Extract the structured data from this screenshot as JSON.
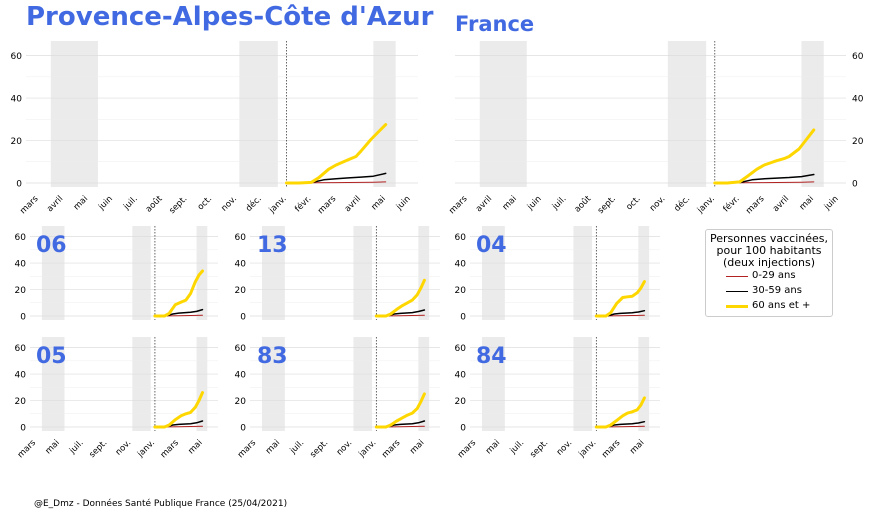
{
  "titles": {
    "region": "Provence-Alpes-Côte d'Azur",
    "france": "France"
  },
  "legend": {
    "title_lines": [
      "Personnes vaccinées,",
      "pour 100 habitants",
      "(deux injections)"
    ],
    "entries": [
      {
        "label": "0-29 ans",
        "color": "#b22222"
      },
      {
        "label": "30-59 ans",
        "color": "#000000"
      },
      {
        "label": "60 ans et +",
        "color": "#ffd700"
      }
    ]
  },
  "footer": "@E_Dmz - Données Santé Publique France (25/04/2021)",
  "colors": {
    "accent": "#4169e1",
    "shade": "#ebebeb",
    "grid": "#dddddd"
  },
  "chart_data": [
    {
      "id": "region",
      "type": "line",
      "title": "Provence-Alpes-Côte d'Azur",
      "xlabels": [
        "mars",
        "avril",
        "mai",
        "juin",
        "juil.",
        "août",
        "sept.",
        "oct.",
        "nov.",
        "déc.",
        "janv.",
        "févr.",
        "mars",
        "avril",
        "mai",
        "juin"
      ],
      "yticks": [
        0,
        20,
        40,
        60
      ],
      "ylim": [
        0,
        65
      ],
      "yaxis_side": "left",
      "series": [
        {
          "name": "0-29 ans",
          "x": [
            10.0,
            11.0,
            12.0,
            13.0,
            13.5,
            14.0
          ],
          "y": [
            0,
            0.1,
            0.2,
            0.3,
            0.4,
            0.5
          ]
        },
        {
          "name": "30-59 ans",
          "x": [
            10.0,
            11.0,
            11.5,
            12.0,
            12.5,
            13.0,
            13.5,
            14.0
          ],
          "y": [
            0,
            0.2,
            1.5,
            2.0,
            2.4,
            2.8,
            3.2,
            4.5
          ]
        },
        {
          "name": "60 ans et +",
          "x": [
            10.0,
            10.5,
            11.0,
            11.3,
            11.7,
            12.0,
            12.5,
            12.8,
            13.0,
            13.4,
            13.7,
            14.0
          ],
          "y": [
            0,
            0,
            0.3,
            2.5,
            6.5,
            8.5,
            11.0,
            12.5,
            15.0,
            20.5,
            24.0,
            27.5
          ]
        }
      ]
    },
    {
      "id": "france",
      "type": "line",
      "title": "France",
      "xlabels": [
        "mars",
        "avril",
        "mai",
        "juin",
        "juil.",
        "août",
        "sept.",
        "oct.",
        "nov.",
        "déc.",
        "janv.",
        "févr.",
        "mars",
        "avril",
        "mai",
        "juin"
      ],
      "yticks": [
        0,
        20,
        40,
        60
      ],
      "ylim": [
        0,
        65
      ],
      "yaxis_side": "right",
      "series": [
        {
          "name": "0-29 ans",
          "x": [
            10.0,
            11.0,
            12.0,
            13.0,
            13.5,
            14.0
          ],
          "y": [
            0,
            0.1,
            0.2,
            0.3,
            0.4,
            0.5
          ]
        },
        {
          "name": "30-59 ans",
          "x": [
            10.0,
            11.0,
            11.5,
            12.0,
            12.5,
            13.0,
            13.5,
            14.0
          ],
          "y": [
            0,
            0.2,
            1.5,
            2.0,
            2.3,
            2.6,
            3.0,
            4.0
          ]
        },
        {
          "name": "60 ans et +",
          "x": [
            10.0,
            10.5,
            11.0,
            11.3,
            11.7,
            12.0,
            12.5,
            12.8,
            13.0,
            13.4,
            13.7,
            14.0
          ],
          "y": [
            0,
            0,
            0.5,
            3.0,
            6.5,
            8.5,
            10.5,
            11.5,
            12.5,
            16.0,
            20.5,
            25.0
          ]
        }
      ]
    },
    {
      "id": "dep-06",
      "type": "line",
      "title": "06",
      "xlabels": [],
      "yticks": [
        0,
        20,
        40,
        60
      ],
      "ylim": [
        0,
        65
      ],
      "yaxis_side": "left",
      "series": [
        {
          "name": "0-29 ans",
          "x": [
            10.0,
            12.0,
            13.0,
            14.0
          ],
          "y": [
            0,
            0.2,
            0.4,
            0.6
          ]
        },
        {
          "name": "30-59 ans",
          "x": [
            10.0,
            11.0,
            11.5,
            12.0,
            13.0,
            13.5,
            14.0
          ],
          "y": [
            0,
            0.2,
            1.5,
            2.2,
            2.8,
            3.5,
            4.8
          ]
        },
        {
          "name": "60 ans et +",
          "x": [
            10.0,
            10.8,
            11.2,
            11.7,
            12.2,
            12.6,
            13.0,
            13.4,
            13.7,
            14.0
          ],
          "y": [
            0,
            0,
            2.0,
            8.5,
            10.5,
            12.0,
            17.0,
            26.0,
            31.0,
            34.0
          ]
        }
      ]
    },
    {
      "id": "dep-13",
      "type": "line",
      "title": "13",
      "xlabels": [],
      "yticks": [
        0,
        20,
        40,
        60
      ],
      "ylim": [
        0,
        65
      ],
      "yaxis_side": "left",
      "series": [
        {
          "name": "0-29 ans",
          "x": [
            10.0,
            12.0,
            13.0,
            14.0
          ],
          "y": [
            0,
            0.2,
            0.4,
            0.5
          ]
        },
        {
          "name": "30-59 ans",
          "x": [
            10.0,
            11.0,
            11.5,
            12.0,
            13.0,
            13.5,
            14.0
          ],
          "y": [
            0,
            0.2,
            1.5,
            2.0,
            2.6,
            3.4,
            4.5
          ]
        },
        {
          "name": "60 ans et +",
          "x": [
            10.0,
            10.8,
            11.2,
            11.7,
            12.2,
            12.6,
            13.0,
            13.4,
            13.7,
            14.0
          ],
          "y": [
            0,
            0,
            1.5,
            5.0,
            8.0,
            10.0,
            12.0,
            16.0,
            21.0,
            27.0
          ]
        }
      ]
    },
    {
      "id": "dep-04",
      "type": "line",
      "title": "04",
      "xlabels": [],
      "yticks": [
        0,
        20,
        40,
        60
      ],
      "ylim": [
        0,
        65
      ],
      "yaxis_side": "left",
      "series": [
        {
          "name": "0-29 ans",
          "x": [
            10.0,
            12.0,
            13.0,
            14.0
          ],
          "y": [
            0,
            0.2,
            0.4,
            0.5
          ]
        },
        {
          "name": "30-59 ans",
          "x": [
            10.0,
            11.0,
            11.5,
            12.0,
            13.0,
            13.5,
            14.0
          ],
          "y": [
            0,
            0.2,
            1.5,
            2.0,
            2.5,
            3.0,
            4.0
          ]
        },
        {
          "name": "60 ans et +",
          "x": [
            10.0,
            10.8,
            11.2,
            11.7,
            12.2,
            12.6,
            13.0,
            13.4,
            13.7,
            14.0
          ],
          "y": [
            0,
            0,
            2.5,
            9.5,
            14.0,
            14.5,
            15.0,
            17.5,
            21.0,
            26.0
          ]
        }
      ]
    },
    {
      "id": "dep-05",
      "type": "line",
      "title": "05",
      "xlabels": [
        "mars",
        "mai",
        "juil.",
        "sept.",
        "nov.",
        "janv.",
        "mars",
        "mai"
      ],
      "yticks": [
        0,
        20,
        40,
        60
      ],
      "ylim": [
        0,
        65
      ],
      "yaxis_side": "left",
      "series": [
        {
          "name": "0-29 ans",
          "x": [
            10.0,
            12.0,
            13.0,
            14.0
          ],
          "y": [
            0,
            0.2,
            0.4,
            0.5
          ]
        },
        {
          "name": "30-59 ans",
          "x": [
            10.0,
            11.0,
            11.5,
            12.0,
            13.0,
            13.5,
            14.0
          ],
          "y": [
            0,
            0.2,
            1.5,
            2.0,
            2.5,
            3.2,
            4.5
          ]
        },
        {
          "name": "60 ans et +",
          "x": [
            10.0,
            10.8,
            11.2,
            11.7,
            12.2,
            12.6,
            13.0,
            13.4,
            13.7,
            14.0
          ],
          "y": [
            0,
            0,
            1.5,
            5.5,
            8.5,
            10.0,
            11.0,
            15.0,
            20.0,
            26.0
          ]
        }
      ]
    },
    {
      "id": "dep-83",
      "type": "line",
      "title": "83",
      "xlabels": [
        "mars",
        "mai",
        "juil.",
        "sept.",
        "nov.",
        "janv.",
        "mars",
        "mai"
      ],
      "yticks": [
        0,
        20,
        40,
        60
      ],
      "ylim": [
        0,
        65
      ],
      "yaxis_side": "left",
      "series": [
        {
          "name": "0-29 ans",
          "x": [
            10.0,
            12.0,
            13.0,
            14.0
          ],
          "y": [
            0,
            0.2,
            0.4,
            0.5
          ]
        },
        {
          "name": "30-59 ans",
          "x": [
            10.0,
            11.0,
            11.5,
            12.0,
            13.0,
            13.5,
            14.0
          ],
          "y": [
            0,
            0.2,
            1.5,
            2.0,
            2.5,
            3.2,
            4.5
          ]
        },
        {
          "name": "60 ans et +",
          "x": [
            10.0,
            10.8,
            11.2,
            11.7,
            12.2,
            12.6,
            13.0,
            13.4,
            13.7,
            14.0
          ],
          "y": [
            0,
            0,
            1.5,
            4.5,
            7.0,
            9.0,
            10.5,
            14.0,
            19.0,
            25.0
          ]
        }
      ]
    },
    {
      "id": "dep-84",
      "type": "line",
      "title": "84",
      "xlabels": [
        "mars",
        "mai",
        "juil.",
        "sept.",
        "nov.",
        "janv.",
        "mars",
        "mai"
      ],
      "yticks": [
        0,
        20,
        40,
        60
      ],
      "ylim": [
        0,
        65
      ],
      "yaxis_side": "left",
      "series": [
        {
          "name": "0-29 ans",
          "x": [
            10.0,
            12.0,
            13.0,
            14.0
          ],
          "y": [
            0,
            0.2,
            0.4,
            0.5
          ]
        },
        {
          "name": "30-59 ans",
          "x": [
            10.0,
            11.0,
            11.5,
            12.0,
            13.0,
            13.5,
            14.0
          ],
          "y": [
            0,
            0.2,
            1.5,
            2.0,
            2.5,
            3.0,
            4.0
          ]
        },
        {
          "name": "60 ans et +",
          "x": [
            10.0,
            10.8,
            11.2,
            11.7,
            12.2,
            12.6,
            13.0,
            13.4,
            13.7,
            14.0
          ],
          "y": [
            0,
            0,
            1.5,
            5.0,
            8.5,
            10.5,
            11.5,
            13.0,
            16.5,
            22.0
          ]
        }
      ]
    }
  ]
}
